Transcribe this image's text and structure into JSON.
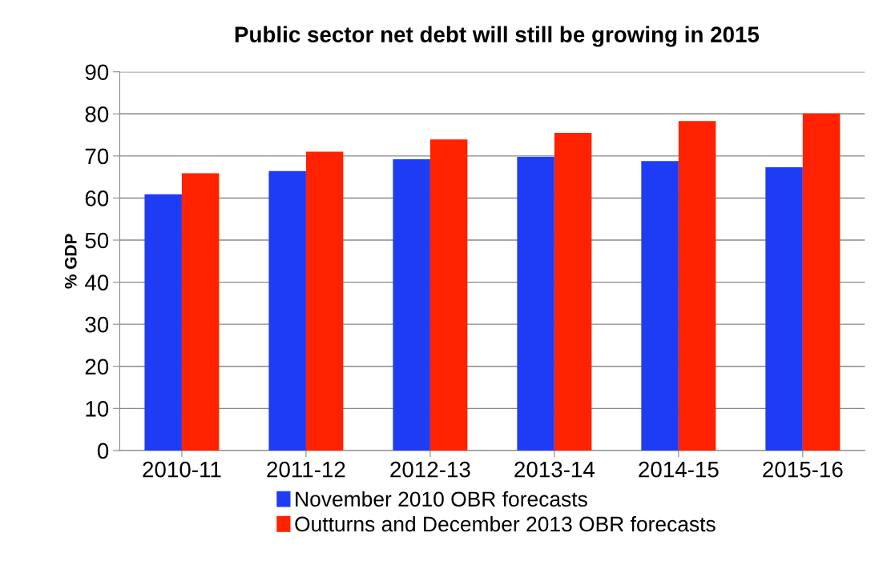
{
  "chart_data": {
    "type": "bar",
    "title": "Public sector net debt will still be growing in 2015",
    "ylabel": "% GDP",
    "categories": [
      "2010-11",
      "2011-12",
      "2012-13",
      "2013-14",
      "2014-15",
      "2015-16"
    ],
    "series": [
      {
        "name": "November 2010 OBR forecasts",
        "color": "#1f3cf5",
        "values": [
          60.9,
          66.4,
          69.2,
          69.8,
          68.8,
          67.3
        ]
      },
      {
        "name": "Outturns and December 2013 OBR forecasts",
        "color": "#ff2200",
        "values": [
          65.9,
          71.0,
          73.9,
          75.5,
          78.3,
          80.1
        ]
      }
    ],
    "ylim": [
      0,
      90
    ],
    "yticks": [
      0,
      10,
      20,
      30,
      40,
      50,
      60,
      70,
      80,
      90
    ],
    "grid": "y",
    "legend": "bottom"
  }
}
